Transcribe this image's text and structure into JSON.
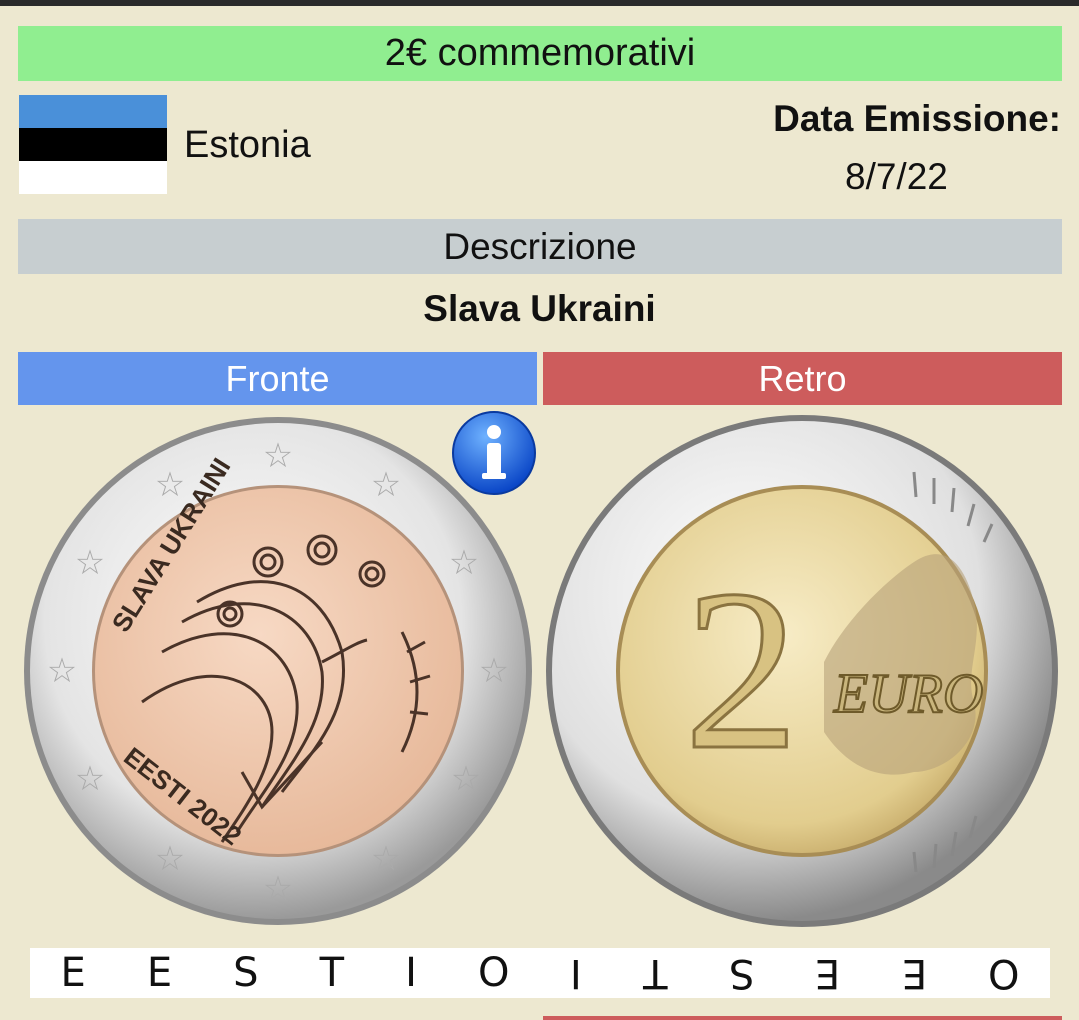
{
  "header": {
    "title": "2€ commemorativi"
  },
  "country": {
    "name": "Estonia",
    "flag_colors": [
      "#4a90d9",
      "#000000",
      "#ffffff"
    ]
  },
  "issue": {
    "label": "Data Emissione:",
    "date": "8/7/22"
  },
  "description": {
    "header": "Descrizione",
    "text": "Slava Ukraini"
  },
  "tabs": {
    "front": "Fronte",
    "back": "Retro"
  },
  "front_coin": {
    "inscription_top": "SLAVA UKRAINI",
    "inscription_bottom": "EESTI 2022"
  },
  "back_coin": {
    "value": "2",
    "currency": "EURO"
  },
  "edge_inscription": [
    "E",
    "E",
    "S",
    "T",
    "I",
    "O",
    "I",
    "T",
    "S",
    "E",
    "E",
    "O"
  ],
  "colors": {
    "banner": "#90ee90",
    "front_tab": "#6495ed",
    "back_tab": "#cd5c5c",
    "description_header": "#c7ced0",
    "background": "#ede8d0"
  },
  "icons": {
    "info": "info-icon"
  }
}
